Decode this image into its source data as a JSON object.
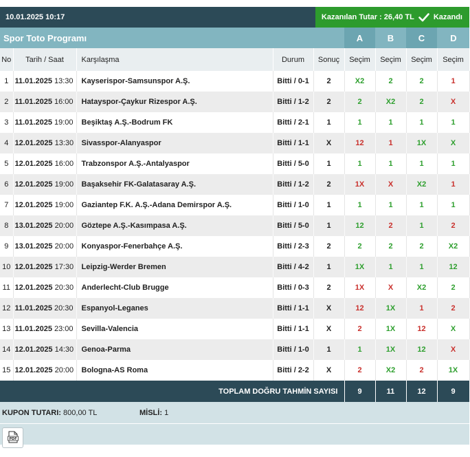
{
  "header": {
    "datetime": "10.01.2025 10:17",
    "winnings_label": "Kazanılan Tutar : 26,40 TL",
    "win_status": "Kazandı",
    "win_color": "#2d9b2d"
  },
  "program": {
    "title": "Spor Toto Programı",
    "column_letters": [
      "A",
      "B",
      "C",
      "D"
    ]
  },
  "table": {
    "headers": {
      "no": "No",
      "datetime": "Tarih / Saat",
      "match": "Karşılaşma",
      "status": "Durum",
      "result": "Sonuç",
      "pick_a": "Seçim",
      "pick_b": "Seçim",
      "pick_c": "Seçim",
      "pick_d": "Seçim"
    },
    "rows": [
      {
        "no": "1",
        "date": "11.01.2025",
        "time": "13:30",
        "match": "Kayserispor-Samsunspor A.Ş.",
        "status": "Bitti / 0-1",
        "result": "2",
        "a": "X2",
        "b": "2",
        "c": "2",
        "d": "1"
      },
      {
        "no": "2",
        "date": "11.01.2025",
        "time": "16:00",
        "match": "Hatayspor-Çaykur Rizespor A.Ş.",
        "status": "Bitti / 1-2",
        "result": "2",
        "a": "2",
        "b": "X2",
        "c": "2",
        "d": "X"
      },
      {
        "no": "3",
        "date": "11.01.2025",
        "time": "19:00",
        "match": "Beşiktaş A.Ş.-Bodrum FK",
        "status": "Bitti / 2-1",
        "result": "1",
        "a": "1",
        "b": "1",
        "c": "1",
        "d": "1"
      },
      {
        "no": "4",
        "date": "12.01.2025",
        "time": "13:30",
        "match": "Sivasspor-Alanyaspor",
        "status": "Bitti / 1-1",
        "result": "X",
        "a": "12",
        "b": "1",
        "c": "1X",
        "d": "X"
      },
      {
        "no": "5",
        "date": "12.01.2025",
        "time": "16:00",
        "match": "Trabzonspor A.Ş.-Antalyaspor",
        "status": "Bitti / 5-0",
        "result": "1",
        "a": "1",
        "b": "1",
        "c": "1",
        "d": "1"
      },
      {
        "no": "6",
        "date": "12.01.2025",
        "time": "19:00",
        "match": "Başaksehir FK-Galatasaray A.Ş.",
        "status": "Bitti / 1-2",
        "result": "2",
        "a": "1X",
        "b": "X",
        "c": "X2",
        "d": "1"
      },
      {
        "no": "7",
        "date": "12.01.2025",
        "time": "19:00",
        "match": "Gaziantep F.K. A.Ş.-Adana Demirspor A.Ş.",
        "status": "Bitti / 1-0",
        "result": "1",
        "a": "1",
        "b": "1",
        "c": "1",
        "d": "1"
      },
      {
        "no": "8",
        "date": "13.01.2025",
        "time": "20:00",
        "match": "Göztepe A.Ş.-Kasımpasa A.Ş.",
        "status": "Bitti / 5-0",
        "result": "1",
        "a": "12",
        "b": "2",
        "c": "1",
        "d": "2"
      },
      {
        "no": "9",
        "date": "13.01.2025",
        "time": "20:00",
        "match": "Konyaspor-Fenerbahçe A.Ş.",
        "status": "Bitti / 2-3",
        "result": "2",
        "a": "2",
        "b": "2",
        "c": "2",
        "d": "X2"
      },
      {
        "no": "10",
        "date": "12.01.2025",
        "time": "17:30",
        "match": "Leipzig-Werder Bremen",
        "status": "Bitti / 4-2",
        "result": "1",
        "a": "1X",
        "b": "1",
        "c": "1",
        "d": "12"
      },
      {
        "no": "11",
        "date": "12.01.2025",
        "time": "20:30",
        "match": "Anderlecht-Club Brugge",
        "status": "Bitti / 0-3",
        "result": "2",
        "a": "1X",
        "b": "X",
        "c": "X2",
        "d": "2"
      },
      {
        "no": "12",
        "date": "11.01.2025",
        "time": "20:30",
        "match": "Espanyol-Leganes",
        "status": "Bitti / 1-1",
        "result": "X",
        "a": "12",
        "b": "1X",
        "c": "1",
        "d": "2"
      },
      {
        "no": "13",
        "date": "11.01.2025",
        "time": "23:00",
        "match": "Sevilla-Valencia",
        "status": "Bitti / 1-1",
        "result": "X",
        "a": "2",
        "b": "1X",
        "c": "12",
        "d": "X"
      },
      {
        "no": "14",
        "date": "12.01.2025",
        "time": "14:30",
        "match": "Genoa-Parma",
        "status": "Bitti / 1-0",
        "result": "1",
        "a": "1",
        "b": "1X",
        "c": "12",
        "d": "X"
      },
      {
        "no": "15",
        "date": "12.01.2025",
        "time": "20:00",
        "match": "Bologna-AS Roma",
        "status": "Bitti / 2-2",
        "result": "X",
        "a": "2",
        "b": "X2",
        "c": "2",
        "d": "1X"
      }
    ],
    "totals_label": "TOPLAM DOĞRU TAHMİN SAYISI",
    "totals": {
      "a": "9",
      "b": "11",
      "c": "12",
      "d": "9"
    }
  },
  "coupon": {
    "amount_label": "KUPON TUTARI:",
    "amount_value": "800,00 TL",
    "multiplier_label": "MİSLİ:",
    "multiplier_value": "1"
  },
  "pdf_icon": "pdf-file-icon",
  "colors": {
    "dark_header": "#2c4a57",
    "program_bar": "#82b5c0",
    "correct": "#2e9f2e",
    "wrong": "#c9302c"
  }
}
